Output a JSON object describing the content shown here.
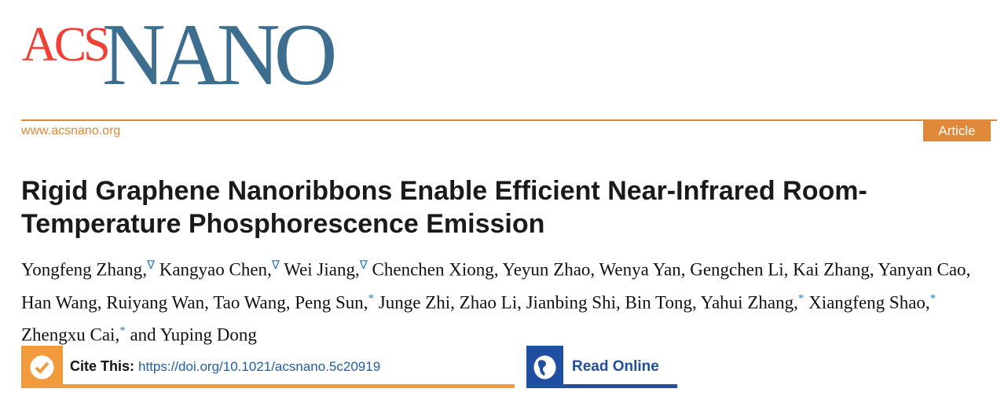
{
  "journal": {
    "logo_text": "ACSNANO",
    "logo_part1": "ACS",
    "logo_part2": "NANO",
    "url": "www.acsnano.org",
    "article_type": "Article",
    "colors": {
      "acs": "#ee4035",
      "nano": "#3d6e90",
      "rule": "#e08a3a"
    }
  },
  "title": "Rigid Graphene Nanoribbons Enable Efficient Near-Infrared Room-Temperature Phosphorescence Emission",
  "authors": [
    {
      "name": "Yongfeng Zhang",
      "mark": "∇"
    },
    {
      "name": "Kangyao Chen",
      "mark": "∇"
    },
    {
      "name": "Wei Jiang",
      "mark": "∇"
    },
    {
      "name": "Chenchen Xiong"
    },
    {
      "name": "Yeyun Zhao"
    },
    {
      "name": "Wenya Yan"
    },
    {
      "name": "Gengchen Li"
    },
    {
      "name": "Kai Zhang"
    },
    {
      "name": "Yanyan Cao"
    },
    {
      "name": "Han Wang"
    },
    {
      "name": "Ruiyang Wan"
    },
    {
      "name": "Tao Wang"
    },
    {
      "name": "Peng Sun",
      "mark": "*"
    },
    {
      "name": "Junge Zhi"
    },
    {
      "name": "Zhao Li"
    },
    {
      "name": "Jianbing Shi"
    },
    {
      "name": "Bin Tong"
    },
    {
      "name": "Yahui Zhang",
      "mark": "*"
    },
    {
      "name": "Xiangfeng Shao",
      "mark": "*"
    },
    {
      "name": "Zhengxu Cai",
      "mark": "*"
    },
    {
      "name": "Yuping Dong",
      "prefix": "and "
    }
  ],
  "cite": {
    "label": "Cite This:",
    "doi": "https://doi.org/10.1021/acsnano.5c20919",
    "icon": "checkmark-icon",
    "color": "#f19b3c"
  },
  "read_online": {
    "label": "Read Online",
    "icon": "globe-icon",
    "color": "#1f4fa0"
  }
}
